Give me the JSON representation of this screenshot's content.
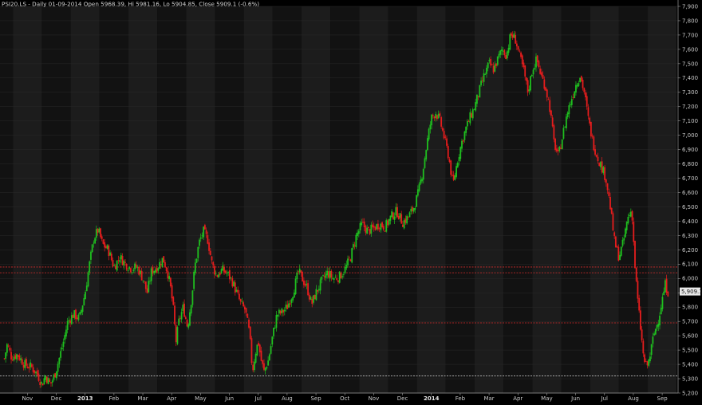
{
  "header": {
    "title": "PSI20.LS - Daily 01-09-2014 Open 5968.39, Hi 5981.16, Lo 5904.85, Close 5909.1 (-0.6%)"
  },
  "colors": {
    "up": "#1fbf1f",
    "down": "#e51d1d",
    "background": "#000000",
    "band_light": "#1c1c1c",
    "band_dark": "#121212",
    "level_line": "#d42b2b",
    "support_line": "#bfbfbf",
    "last_price_tag": "#e8e8e8"
  },
  "last_price_label": "5,909.1",
  "chart_data": {
    "type": "candlestick",
    "title": "PSI20.LS - Daily 01-09-2014 Open 5968.39, Hi 5981.16, Lo 5904.85, Close 5909.1 (-0.6%)",
    "ylim": [
      5200,
      7900
    ],
    "y_ticks": [
      "5,200",
      "5,300",
      "5,400",
      "5,500",
      "5,600",
      "5,700",
      "5,800",
      "5,900",
      "6,000",
      "6,100",
      "6,200",
      "6,300",
      "6,400",
      "6,500",
      "6,600",
      "6,700",
      "6,800",
      "6,900",
      "7,000",
      "7,100",
      "7,200",
      "7,300",
      "7,400",
      "7,500",
      "7,600",
      "7,700",
      "7,800",
      "7,900"
    ],
    "x_ticks": [
      {
        "label": "Nov",
        "month": 0
      },
      {
        "label": "Dec",
        "month": 1
      },
      {
        "label": "2013",
        "month": 2,
        "bold": true
      },
      {
        "label": "Feb",
        "month": 3
      },
      {
        "label": "Mar",
        "month": 4
      },
      {
        "label": "Apr",
        "month": 5
      },
      {
        "label": "May",
        "month": 6
      },
      {
        "label": "Jun",
        "month": 7
      },
      {
        "label": "Jul",
        "month": 8
      },
      {
        "label": "Aug",
        "month": 9
      },
      {
        "label": "Sep",
        "month": 10
      },
      {
        "label": "Oct",
        "month": 11
      },
      {
        "label": "Nov",
        "month": 12
      },
      {
        "label": "Dec",
        "month": 13
      },
      {
        "label": "2014",
        "month": 14,
        "bold": true
      },
      {
        "label": "Feb",
        "month": 15
      },
      {
        "label": "Mar",
        "month": 16
      },
      {
        "label": "Apr",
        "month": 17
      },
      {
        "label": "May",
        "month": 18
      },
      {
        "label": "Jun",
        "month": 19
      },
      {
        "label": "Jul",
        "month": 20
      },
      {
        "label": "Aug",
        "month": 21
      },
      {
        "label": "Sep",
        "month": 22
      }
    ],
    "horizontal_levels": [
      {
        "y": 6080,
        "style": "red"
      },
      {
        "y": 6040,
        "style": "red"
      },
      {
        "y": 5690,
        "style": "red"
      },
      {
        "y": 5320,
        "style": "white"
      }
    ],
    "last_close": 5909.1,
    "price_path": [
      {
        "m": -0.8,
        "p": 5440
      },
      {
        "m": -0.7,
        "p": 5540
      },
      {
        "m": -0.55,
        "p": 5450
      },
      {
        "m": -0.35,
        "p": 5470
      },
      {
        "m": -0.1,
        "p": 5400
      },
      {
        "m": 0.15,
        "p": 5380
      },
      {
        "m": 0.35,
        "p": 5330
      },
      {
        "m": 0.5,
        "p": 5260
      },
      {
        "m": 0.62,
        "p": 5320
      },
      {
        "m": 0.8,
        "p": 5260
      },
      {
        "m": 0.95,
        "p": 5330
      },
      {
        "m": 1.1,
        "p": 5440
      },
      {
        "m": 1.25,
        "p": 5560
      },
      {
        "m": 1.4,
        "p": 5700
      },
      {
        "m": 1.6,
        "p": 5750
      },
      {
        "m": 1.8,
        "p": 5720
      },
      {
        "m": 2.0,
        "p": 5900
      },
      {
        "m": 2.15,
        "p": 6100
      },
      {
        "m": 2.3,
        "p": 6280
      },
      {
        "m": 2.45,
        "p": 6340
      },
      {
        "m": 2.6,
        "p": 6240
      },
      {
        "m": 2.8,
        "p": 6200
      },
      {
        "m": 3.0,
        "p": 6080
      },
      {
        "m": 3.2,
        "p": 6150
      },
      {
        "m": 3.4,
        "p": 6100
      },
      {
        "m": 3.6,
        "p": 6070
      },
      {
        "m": 3.8,
        "p": 6080
      },
      {
        "m": 4.0,
        "p": 6000
      },
      {
        "m": 4.15,
        "p": 5900
      },
      {
        "m": 4.3,
        "p": 6050
      },
      {
        "m": 4.5,
        "p": 6080
      },
      {
        "m": 4.7,
        "p": 6140
      },
      {
        "m": 4.85,
        "p": 6050
      },
      {
        "m": 4.95,
        "p": 5950
      },
      {
        "m": 5.05,
        "p": 5800
      },
      {
        "m": 5.15,
        "p": 5560
      },
      {
        "m": 5.25,
        "p": 5700
      },
      {
        "m": 5.4,
        "p": 5800
      },
      {
        "m": 5.55,
        "p": 5660
      },
      {
        "m": 5.7,
        "p": 5880
      },
      {
        "m": 5.8,
        "p": 6080
      },
      {
        "m": 5.95,
        "p": 6250
      },
      {
        "m": 6.1,
        "p": 6330
      },
      {
        "m": 6.25,
        "p": 6270
      },
      {
        "m": 6.4,
        "p": 6100
      },
      {
        "m": 6.55,
        "p": 6020
      },
      {
        "m": 6.75,
        "p": 6060
      },
      {
        "m": 6.95,
        "p": 6030
      },
      {
        "m": 7.1,
        "p": 5980
      },
      {
        "m": 7.25,
        "p": 5900
      },
      {
        "m": 7.4,
        "p": 5820
      },
      {
        "m": 7.55,
        "p": 5780
      },
      {
        "m": 7.7,
        "p": 5610
      },
      {
        "m": 7.8,
        "p": 5350
      },
      {
        "m": 7.9,
        "p": 5480
      },
      {
        "m": 8.0,
        "p": 5560
      },
      {
        "m": 8.1,
        "p": 5430
      },
      {
        "m": 8.2,
        "p": 5350
      },
      {
        "m": 8.35,
        "p": 5430
      },
      {
        "m": 8.5,
        "p": 5600
      },
      {
        "m": 8.65,
        "p": 5750
      },
      {
        "m": 8.8,
        "p": 5760
      },
      {
        "m": 9.0,
        "p": 5800
      },
      {
        "m": 9.2,
        "p": 5900
      },
      {
        "m": 9.4,
        "p": 6050
      },
      {
        "m": 9.55,
        "p": 5990
      },
      {
        "m": 9.7,
        "p": 5930
      },
      {
        "m": 9.85,
        "p": 5820
      },
      {
        "m": 10.0,
        "p": 5900
      },
      {
        "m": 10.2,
        "p": 5980
      },
      {
        "m": 10.4,
        "p": 6040
      },
      {
        "m": 10.6,
        "p": 6000
      },
      {
        "m": 10.8,
        "p": 6010
      },
      {
        "m": 11.0,
        "p": 6060
      },
      {
        "m": 11.2,
        "p": 6150
      },
      {
        "m": 11.4,
        "p": 6300
      },
      {
        "m": 11.6,
        "p": 6380
      },
      {
        "m": 11.8,
        "p": 6330
      },
      {
        "m": 12.0,
        "p": 6350
      },
      {
        "m": 12.2,
        "p": 6380
      },
      {
        "m": 12.4,
        "p": 6360
      },
      {
        "m": 12.6,
        "p": 6430
      },
      {
        "m": 12.8,
        "p": 6470
      },
      {
        "m": 13.0,
        "p": 6390
      },
      {
        "m": 13.2,
        "p": 6430
      },
      {
        "m": 13.4,
        "p": 6500
      },
      {
        "m": 13.55,
        "p": 6600
      },
      {
        "m": 13.7,
        "p": 6750
      },
      {
        "m": 13.85,
        "p": 6950
      },
      {
        "m": 14.0,
        "p": 7120
      },
      {
        "m": 14.15,
        "p": 7160
      },
      {
        "m": 14.3,
        "p": 7100
      },
      {
        "m": 14.45,
        "p": 6980
      },
      {
        "m": 14.6,
        "p": 6850
      },
      {
        "m": 14.75,
        "p": 6650
      },
      {
        "m": 14.9,
        "p": 6820
      },
      {
        "m": 15.05,
        "p": 6950
      },
      {
        "m": 15.2,
        "p": 7050
      },
      {
        "m": 15.35,
        "p": 7130
      },
      {
        "m": 15.5,
        "p": 7200
      },
      {
        "m": 15.65,
        "p": 7300
      },
      {
        "m": 15.8,
        "p": 7400
      },
      {
        "m": 16.0,
        "p": 7500
      },
      {
        "m": 16.15,
        "p": 7460
      },
      {
        "m": 16.3,
        "p": 7530
      },
      {
        "m": 16.45,
        "p": 7600
      },
      {
        "m": 16.6,
        "p": 7560
      },
      {
        "m": 16.75,
        "p": 7700
      },
      {
        "m": 16.9,
        "p": 7680
      },
      {
        "m": 17.05,
        "p": 7560
      },
      {
        "m": 17.2,
        "p": 7450
      },
      {
        "m": 17.35,
        "p": 7300
      },
      {
        "m": 17.5,
        "p": 7460
      },
      {
        "m": 17.65,
        "p": 7530
      },
      {
        "m": 17.8,
        "p": 7420
      },
      {
        "m": 17.95,
        "p": 7340
      },
      {
        "m": 18.1,
        "p": 7200
      },
      {
        "m": 18.25,
        "p": 6950
      },
      {
        "m": 18.4,
        "p": 6850
      },
      {
        "m": 18.55,
        "p": 7000
      },
      {
        "m": 18.7,
        "p": 7150
      },
      {
        "m": 18.85,
        "p": 7250
      },
      {
        "m": 19.0,
        "p": 7350
      },
      {
        "m": 19.15,
        "p": 7420
      },
      {
        "m": 19.3,
        "p": 7300
      },
      {
        "m": 19.45,
        "p": 7100
      },
      {
        "m": 19.6,
        "p": 6950
      },
      {
        "m": 19.75,
        "p": 6850
      },
      {
        "m": 19.9,
        "p": 6780
      },
      {
        "m": 20.05,
        "p": 6700
      },
      {
        "m": 20.2,
        "p": 6500
      },
      {
        "m": 20.35,
        "p": 6250
      },
      {
        "m": 20.5,
        "p": 6150
      },
      {
        "m": 20.65,
        "p": 6250
      },
      {
        "m": 20.8,
        "p": 6420
      },
      {
        "m": 20.95,
        "p": 6480
      },
      {
        "m": 21.05,
        "p": 6100
      },
      {
        "m": 21.15,
        "p": 5850
      },
      {
        "m": 21.25,
        "p": 5650
      },
      {
        "m": 21.35,
        "p": 5450
      },
      {
        "m": 21.45,
        "p": 5380
      },
      {
        "m": 21.55,
        "p": 5430
      },
      {
        "m": 21.7,
        "p": 5600
      },
      {
        "m": 21.85,
        "p": 5700
      },
      {
        "m": 22.0,
        "p": 5850
      },
      {
        "m": 22.1,
        "p": 5960
      },
      {
        "m": 22.2,
        "p": 5909
      }
    ]
  }
}
